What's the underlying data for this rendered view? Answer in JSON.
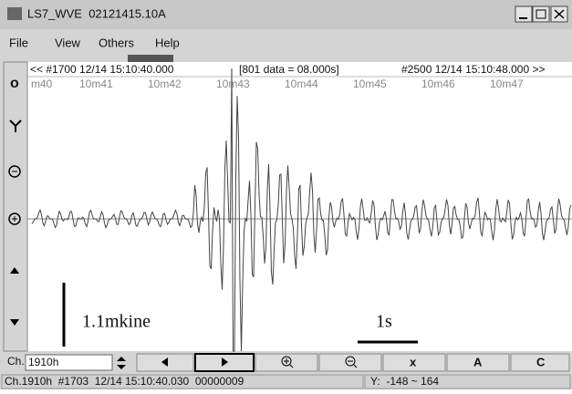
{
  "window": {
    "title": "LS7_WVE  02121415.10A"
  },
  "menu": [
    "File",
    "View",
    "Others",
    "Help"
  ],
  "left_toolbar": [
    "o"
  ],
  "header": {
    "start": "<< #1700 12/14 15:10:40.000",
    "range": "[801 data = 08.000s]",
    "end": "#2500 12/14 15:10:48.000 >>"
  },
  "time_labels": [
    "m40",
    "10m41",
    "10m42",
    "10m43",
    "10m44",
    "10m45",
    "10m46",
    "10m47"
  ],
  "scale": {
    "amplitude": "1.1mkine",
    "time": "1s"
  },
  "toolbar": {
    "channel_label": "Ch.",
    "channel": "1910h",
    "buttons": [
      "x",
      "A",
      "C"
    ]
  },
  "status": {
    "info": "Ch.1910h  #1703  12/14 15:10:40.030  00000009",
    "y_range": "Y:  -148 ~ 164"
  }
}
